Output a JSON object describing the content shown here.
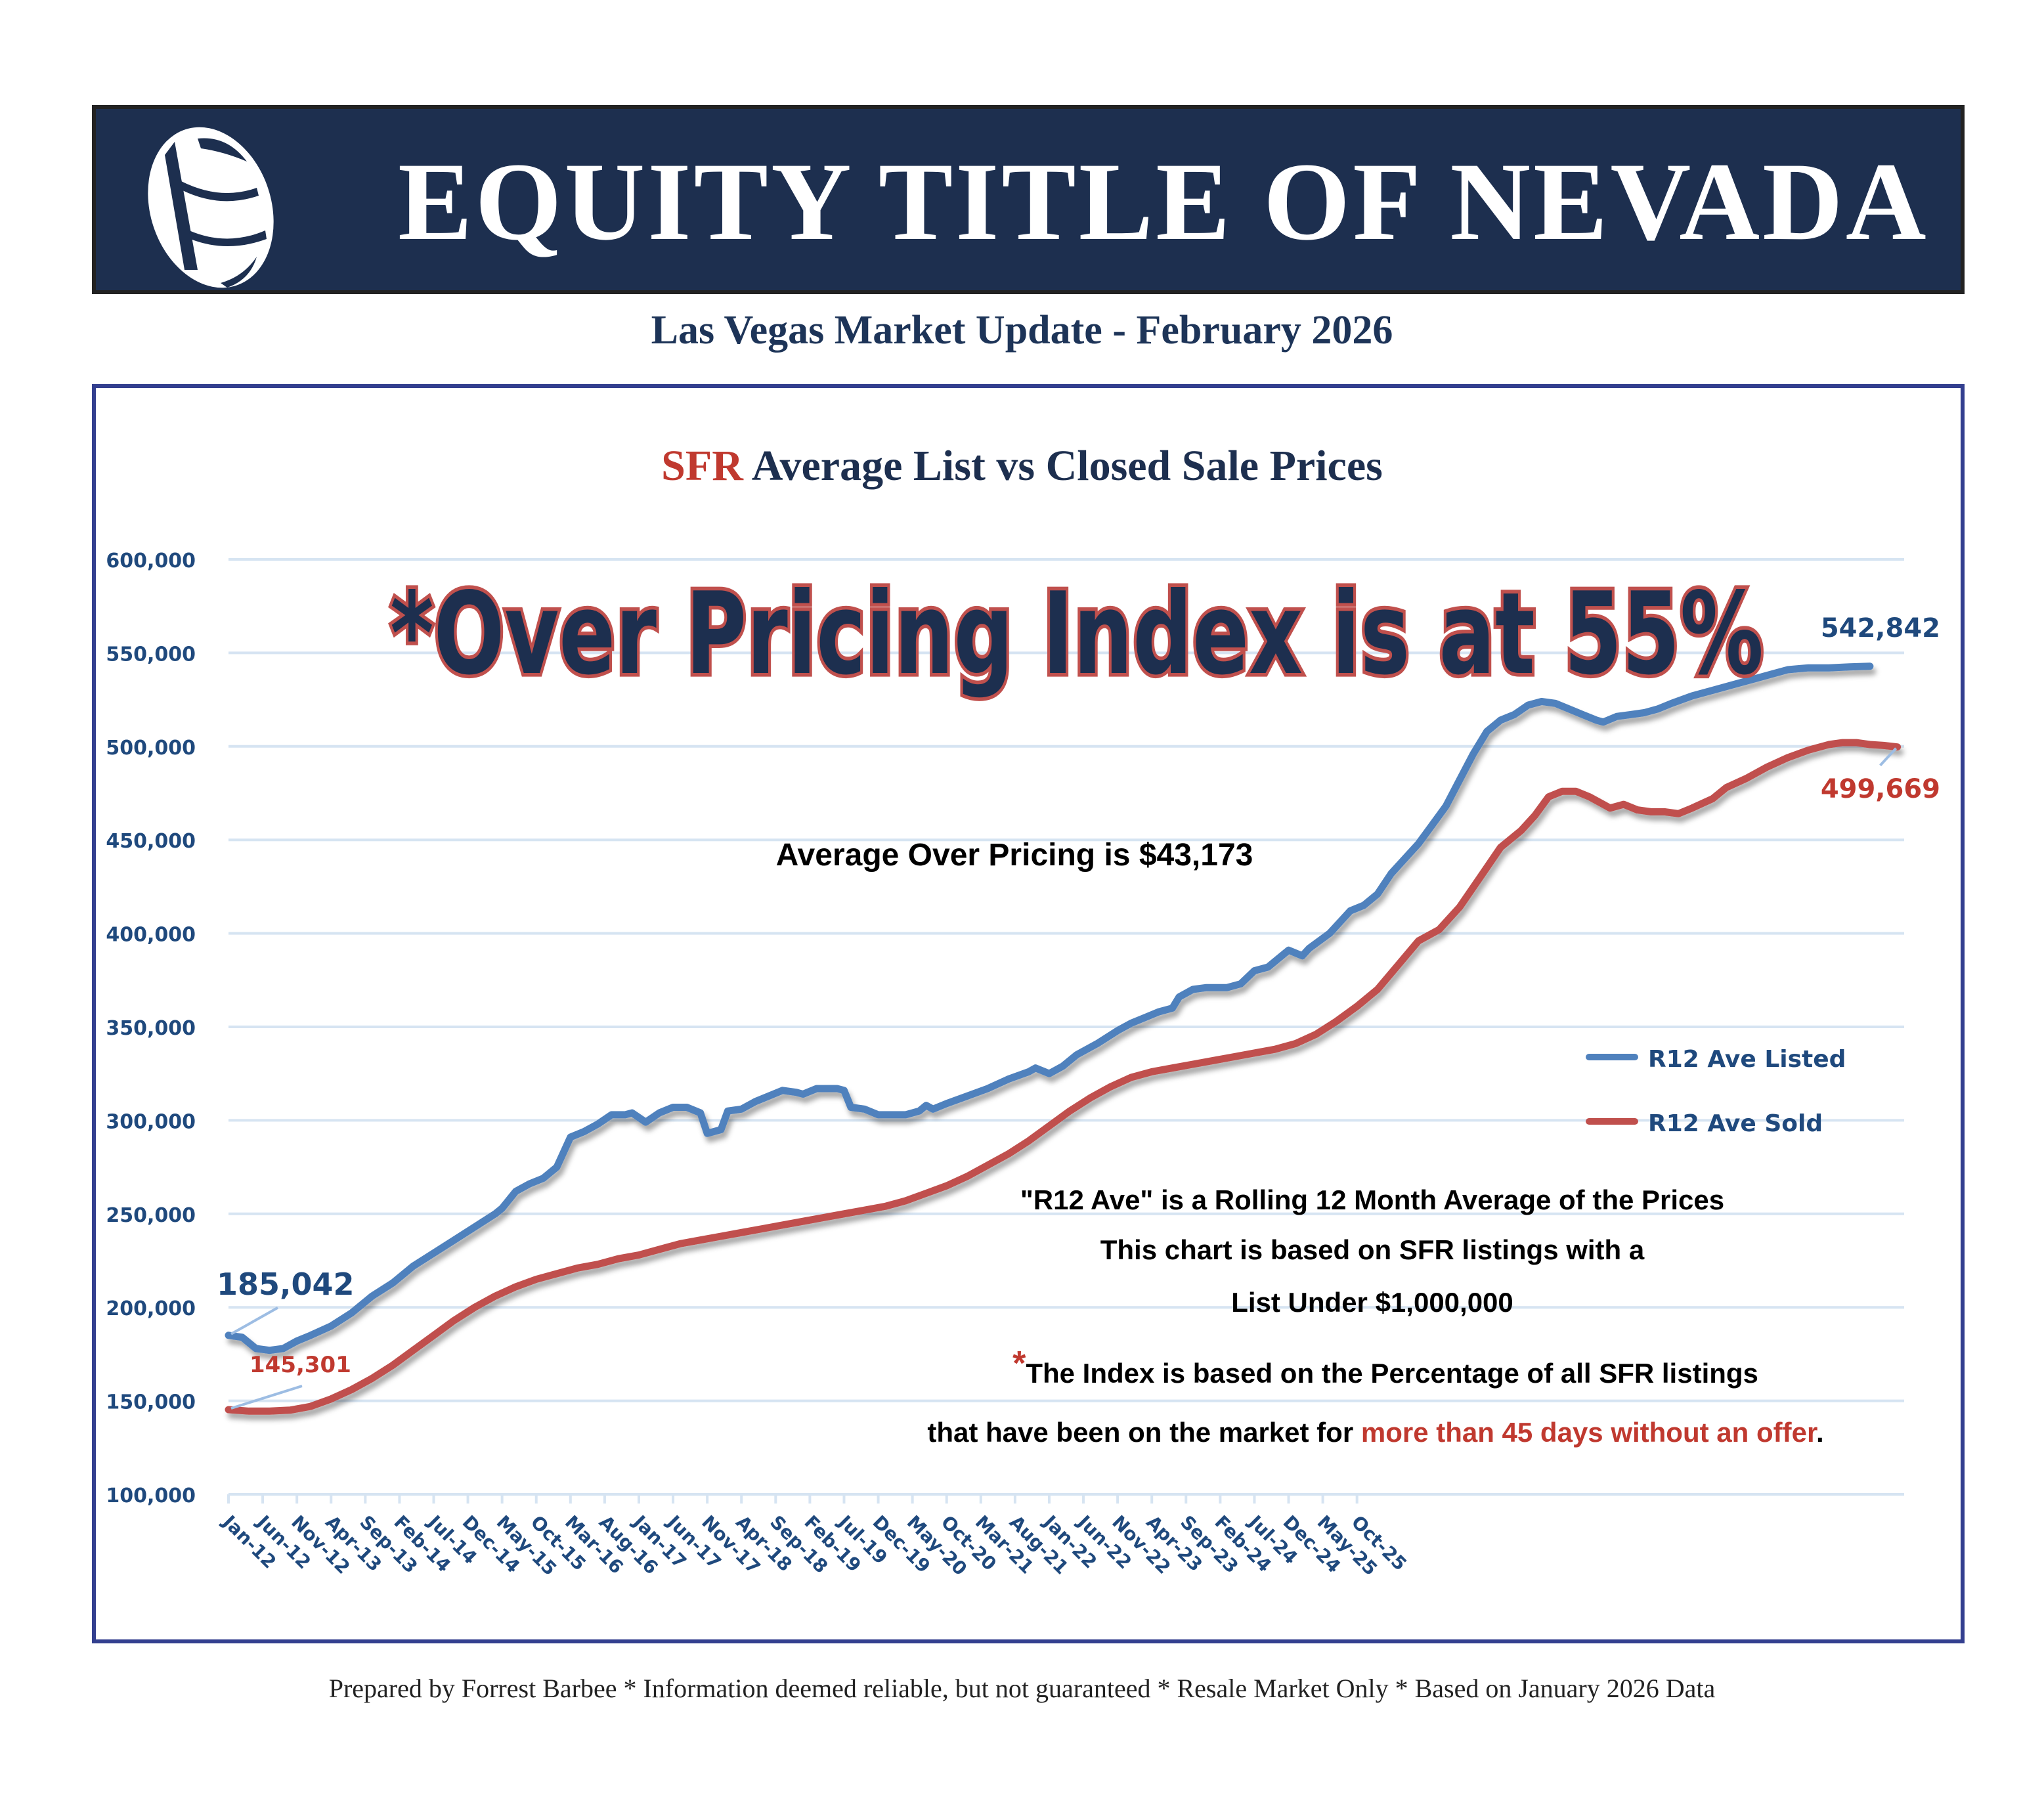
{
  "header": {
    "company": "EQUITY TITLE OF NEVADA",
    "subtitle": "Las Vegas Market Update - February 2026"
  },
  "footer": "Prepared by Forrest Barbee * Information deemed reliable, but not guaranteed * Resale Market Only * Based on January 2026 Data",
  "colors": {
    "navy": "#1d2f4f",
    "listed": "#4f81bd",
    "sold": "#c0504d",
    "accent_red": "#c0392f",
    "axis_text": "#1f497d",
    "grid": "#d6e4f2",
    "frame": "#333f8f"
  },
  "chart_data": {
    "type": "line",
    "title_prefix": "SFR",
    "title_rest": " Average List vs Closed Sale Prices",
    "headline": "*Over Pricing Index is at 55%",
    "annotation_avg": "Average Over Pricing is $43,173",
    "notes": [
      "\"R12 Ave\" is a Rolling 12 Month Average of the Prices",
      "This chart is based on SFR listings with a",
      "List Under $1,000,000"
    ],
    "index_note_star": "*",
    "index_note_line1": "The Index is based on the Percentage of all SFR listings",
    "index_note_line2_black": "that have been on the market for ",
    "index_note_line2_red": "more than 45 days without an offer",
    "index_note_line2_end": ".",
    "ylim": [
      100000,
      600000
    ],
    "y_ticks": [
      "100,000",
      "150,000",
      "200,000",
      "250,000",
      "300,000",
      "350,000",
      "400,000",
      "450,000",
      "500,000",
      "550,000",
      "600,000"
    ],
    "x_tick_labels": [
      "Jan-12",
      "Jun-12",
      "Nov-12",
      "Apr-13",
      "Sep-13",
      "Feb-14",
      "Jul-14",
      "Dec-14",
      "May-15",
      "Oct-15",
      "Mar-16",
      "Aug-16",
      "Jan-17",
      "Jun-17",
      "Nov-17",
      "Apr-18",
      "Sep-18",
      "Feb-19",
      "Jul-19",
      "Dec-19",
      "May-20",
      "Oct-20",
      "Mar-21",
      "Aug-21",
      "Jan-22",
      "Jun-22",
      "Nov-22",
      "Apr-23",
      "Sep-23",
      "Feb-24",
      "Jul-24",
      "Dec-24",
      "May-25",
      "Oct-25"
    ],
    "x_months_total": 169,
    "legend": {
      "position": "right",
      "entries": [
        "R12 Ave Listed",
        "R12 Ave Sold"
      ]
    },
    "series": [
      {
        "name": "R12 Ave Listed",
        "start_label": "185,042",
        "end_label": "542,842",
        "points": [
          [
            0,
            185042
          ],
          [
            2,
            184000
          ],
          [
            4,
            178000
          ],
          [
            6,
            177000
          ],
          [
            8,
            178000
          ],
          [
            10,
            182000
          ],
          [
            12,
            185000
          ],
          [
            15,
            190000
          ],
          [
            18,
            197000
          ],
          [
            21,
            206000
          ],
          [
            24,
            213000
          ],
          [
            27,
            222000
          ],
          [
            30,
            229000
          ],
          [
            33,
            236000
          ],
          [
            36,
            243000
          ],
          [
            39,
            250000
          ],
          [
            40,
            253000
          ],
          [
            42,
            262000
          ],
          [
            44,
            266000
          ],
          [
            46,
            269000
          ],
          [
            48,
            275000
          ],
          [
            50,
            291000
          ],
          [
            52,
            294000
          ],
          [
            54,
            298000
          ],
          [
            56,
            303000
          ],
          [
            58,
            303000
          ],
          [
            59,
            304000
          ],
          [
            61,
            299000
          ],
          [
            63,
            304000
          ],
          [
            65,
            307000
          ],
          [
            67,
            307000
          ],
          [
            69,
            304000
          ],
          [
            70,
            293000
          ],
          [
            72,
            295000
          ],
          [
            73,
            305000
          ],
          [
            75,
            306000
          ],
          [
            77,
            310000
          ],
          [
            79,
            313000
          ],
          [
            81,
            316000
          ],
          [
            83,
            315000
          ],
          [
            84,
            314000
          ],
          [
            86,
            317000
          ],
          [
            89,
            317000
          ],
          [
            90,
            316000
          ],
          [
            91,
            307000
          ],
          [
            93,
            306000
          ],
          [
            95,
            303000
          ],
          [
            96,
            303000
          ],
          [
            98,
            303000
          ],
          [
            99,
            303000
          ],
          [
            101,
            305000
          ],
          [
            102,
            308000
          ],
          [
            103,
            306000
          ],
          [
            105,
            309000
          ],
          [
            108,
            313000
          ],
          [
            111,
            317000
          ],
          [
            114,
            322000
          ],
          [
            117,
            326000
          ],
          [
            118,
            328000
          ],
          [
            120,
            325000
          ],
          [
            122,
            329000
          ],
          [
            124,
            335000
          ],
          [
            127,
            341000
          ],
          [
            130,
            348000
          ],
          [
            132,
            352000
          ],
          [
            134,
            355000
          ],
          [
            136,
            358000
          ],
          [
            138,
            360000
          ],
          [
            139,
            366000
          ],
          [
            141,
            370000
          ],
          [
            143,
            371000
          ],
          [
            146,
            371000
          ],
          [
            148,
            373000
          ],
          [
            150,
            380000
          ],
          [
            152,
            382000
          ],
          [
            154,
            388000
          ],
          [
            155,
            391000
          ],
          [
            157,
            388000
          ],
          [
            158,
            392000
          ],
          [
            161,
            400000
          ],
          [
            163,
            408000
          ],
          [
            164,
            412000
          ],
          [
            166,
            415000
          ],
          [
            168,
            421000
          ],
          [
            170,
            432000
          ],
          [
            172,
            440000
          ],
          [
            174,
            448000
          ],
          [
            176,
            458000
          ],
          [
            178,
            468000
          ],
          [
            180,
            482000
          ],
          [
            182,
            496000
          ],
          [
            184,
            508000
          ],
          [
            186,
            514000
          ],
          [
            188,
            517000
          ],
          [
            190,
            522000
          ],
          [
            192,
            524000
          ],
          [
            194,
            523000
          ],
          [
            196,
            520000
          ],
          [
            198,
            517000
          ],
          [
            200,
            514000
          ],
          [
            201,
            513000
          ],
          [
            203,
            516000
          ],
          [
            205,
            517000
          ],
          [
            207,
            518000
          ],
          [
            209,
            520000
          ],
          [
            211,
            523000
          ],
          [
            214,
            527000
          ],
          [
            217,
            530000
          ],
          [
            220,
            533000
          ],
          [
            223,
            536000
          ],
          [
            226,
            539000
          ],
          [
            228,
            541000
          ],
          [
            231,
            542000
          ],
          [
            234,
            542000
          ],
          [
            237,
            542500
          ],
          [
            240,
            542842
          ]
        ]
      },
      {
        "name": "R12 Ave Sold",
        "start_label": "145,301",
        "end_label": "499,669",
        "points": [
          [
            0,
            145301
          ],
          [
            3,
            144500
          ],
          [
            6,
            144500
          ],
          [
            9,
            145000
          ],
          [
            12,
            147000
          ],
          [
            15,
            151000
          ],
          [
            18,
            156000
          ],
          [
            21,
            162000
          ],
          [
            24,
            169000
          ],
          [
            27,
            177000
          ],
          [
            30,
            185000
          ],
          [
            33,
            193000
          ],
          [
            36,
            200000
          ],
          [
            39,
            206000
          ],
          [
            42,
            211000
          ],
          [
            45,
            215000
          ],
          [
            48,
            218000
          ],
          [
            51,
            221000
          ],
          [
            54,
            223000
          ],
          [
            57,
            226000
          ],
          [
            60,
            228000
          ],
          [
            63,
            231000
          ],
          [
            66,
            234000
          ],
          [
            69,
            236000
          ],
          [
            72,
            238000
          ],
          [
            75,
            240000
          ],
          [
            78,
            242000
          ],
          [
            81,
            244000
          ],
          [
            84,
            246000
          ],
          [
            87,
            248000
          ],
          [
            90,
            250000
          ],
          [
            93,
            252000
          ],
          [
            96,
            254000
          ],
          [
            99,
            257000
          ],
          [
            102,
            261000
          ],
          [
            105,
            265000
          ],
          [
            108,
            270000
          ],
          [
            111,
            276000
          ],
          [
            114,
            282000
          ],
          [
            117,
            289000
          ],
          [
            120,
            297000
          ],
          [
            123,
            305000
          ],
          [
            126,
            312000
          ],
          [
            129,
            318000
          ],
          [
            132,
            323000
          ],
          [
            135,
            326000
          ],
          [
            138,
            328000
          ],
          [
            141,
            330000
          ],
          [
            144,
            332000
          ],
          [
            147,
            334000
          ],
          [
            150,
            336000
          ],
          [
            153,
            338000
          ],
          [
            156,
            341000
          ],
          [
            159,
            346000
          ],
          [
            162,
            353000
          ],
          [
            165,
            361000
          ],
          [
            168,
            370000
          ],
          [
            171,
            383000
          ],
          [
            174,
            396000
          ],
          [
            177,
            402000
          ],
          [
            180,
            414000
          ],
          [
            183,
            430000
          ],
          [
            186,
            446000
          ],
          [
            189,
            455000
          ],
          [
            191,
            463000
          ],
          [
            193,
            473000
          ],
          [
            195,
            476000
          ],
          [
            197,
            476000
          ],
          [
            199,
            473000
          ],
          [
            201,
            469000
          ],
          [
            202,
            467000
          ],
          [
            204,
            469000
          ],
          [
            206,
            466000
          ],
          [
            208,
            465000
          ],
          [
            210,
            465000
          ],
          [
            212,
            464000
          ],
          [
            214,
            467000
          ],
          [
            217,
            472000
          ],
          [
            219,
            478000
          ],
          [
            222,
            483000
          ],
          [
            225,
            489000
          ],
          [
            228,
            494000
          ],
          [
            231,
            498000
          ],
          [
            234,
            501000
          ],
          [
            236,
            502000
          ],
          [
            238,
            502000
          ],
          [
            240,
            501000
          ],
          [
            242,
            500500
          ],
          [
            244,
            499669
          ]
        ]
      }
    ]
  }
}
